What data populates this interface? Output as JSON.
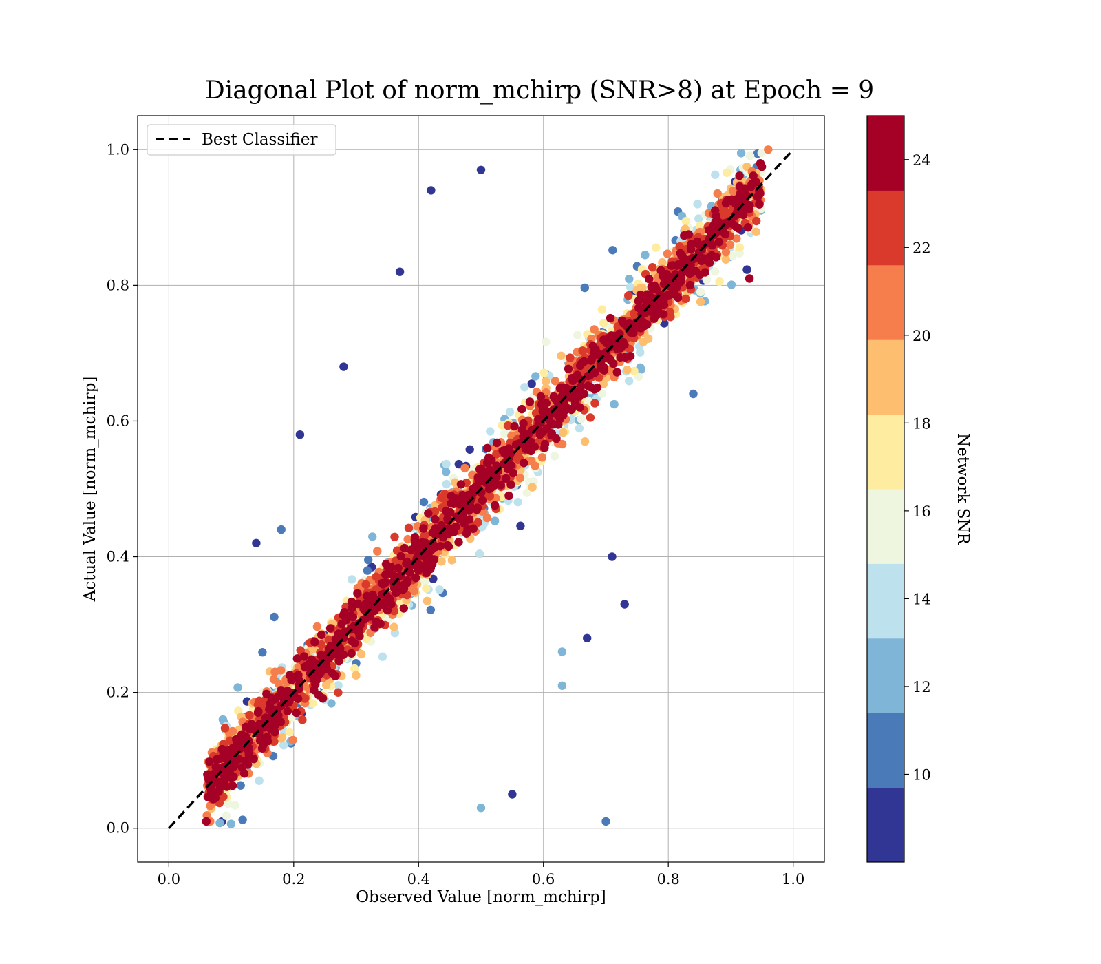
{
  "chart_data": {
    "type": "scatter",
    "title": "Diagonal Plot of norm_mchirp (SNR>8) at Epoch = 9",
    "xlabel": "Observed Value [norm_mchirp]",
    "ylabel": "Actual Value [norm_mchirp]",
    "xlim": [
      -0.05,
      1.05
    ],
    "ylim": [
      -0.05,
      1.05
    ],
    "xticks": [
      0.0,
      0.2,
      0.4,
      0.6,
      0.8,
      1.0
    ],
    "yticks": [
      0.0,
      0.2,
      0.4,
      0.6,
      0.8,
      1.0
    ],
    "xtick_labels": [
      "0.0",
      "0.2",
      "0.4",
      "0.6",
      "0.8",
      "1.0"
    ],
    "ytick_labels": [
      "0.0",
      "0.2",
      "0.4",
      "0.6",
      "0.8",
      "1.0"
    ],
    "grid": true,
    "legend": {
      "position": "upper-left",
      "entries": [
        "Best Classifier"
      ]
    },
    "reference_line": {
      "name": "Best Classifier",
      "x": [
        0.0,
        1.0
      ],
      "y": [
        0.0,
        1.0
      ],
      "style": "dashed",
      "color": "#000000"
    },
    "series": [
      {
        "marker": "circle",
        "color_by": "Network SNR",
        "notable_points": [
          {
            "x": 0.42,
            "y": 0.94,
            "snr": 8.5
          },
          {
            "x": 0.37,
            "y": 0.82,
            "snr": 8.5
          },
          {
            "x": 0.28,
            "y": 0.68,
            "snr": 8.5
          },
          {
            "x": 0.21,
            "y": 0.58,
            "snr": 8.5
          },
          {
            "x": 0.14,
            "y": 0.42,
            "snr": 8.5
          },
          {
            "x": 0.18,
            "y": 0.44,
            "snr": 11.0
          },
          {
            "x": 0.5,
            "y": 0.97,
            "snr": 8.5
          },
          {
            "x": 0.73,
            "y": 0.33,
            "snr": 8.5
          },
          {
            "x": 0.71,
            "y": 0.4,
            "snr": 8.5
          },
          {
            "x": 0.67,
            "y": 0.28,
            "snr": 8.5
          },
          {
            "x": 0.63,
            "y": 0.26,
            "snr": 13.0
          },
          {
            "x": 0.63,
            "y": 0.21,
            "snr": 12.0
          },
          {
            "x": 0.7,
            "y": 0.01,
            "snr": 11.0
          },
          {
            "x": 0.55,
            "y": 0.05,
            "snr": 8.5
          },
          {
            "x": 0.5,
            "y": 0.03,
            "snr": 13.0
          },
          {
            "x": 0.93,
            "y": 0.81,
            "snr": 24.5
          },
          {
            "x": 0.96,
            "y": 1.0,
            "snr": 20.5
          },
          {
            "x": 0.84,
            "y": 0.64,
            "snr": 11.0
          },
          {
            "x": 0.06,
            "y": 0.01,
            "snr": 24.5
          }
        ]
      }
    ],
    "colorbar": {
      "label": "Network SNR",
      "range": [
        8,
        25
      ],
      "ticks": [
        10,
        12,
        14,
        16,
        18,
        20,
        22,
        24
      ],
      "tick_labels": [
        "10",
        "12",
        "14",
        "16",
        "18",
        "20",
        "22",
        "24"
      ],
      "levels": [
        {
          "from": 8.0,
          "to": 9.7,
          "color": "#313695"
        },
        {
          "from": 9.7,
          "to": 11.4,
          "color": "#4a7ab8"
        },
        {
          "from": 11.4,
          "to": 13.1,
          "color": "#7fb5d6"
        },
        {
          "from": 13.1,
          "to": 14.8,
          "color": "#bde2ed"
        },
        {
          "from": 14.8,
          "to": 16.5,
          "color": "#eef6e0"
        },
        {
          "from": 16.5,
          "to": 18.2,
          "color": "#feeda1"
        },
        {
          "from": 18.2,
          "to": 19.9,
          "color": "#fdbe6f"
        },
        {
          "from": 19.9,
          "to": 21.6,
          "color": "#f57e4c"
        },
        {
          "from": 21.6,
          "to": 23.3,
          "color": "#d93a2b"
        },
        {
          "from": 23.3,
          "to": 25.0,
          "color": "#a50026"
        }
      ]
    }
  }
}
